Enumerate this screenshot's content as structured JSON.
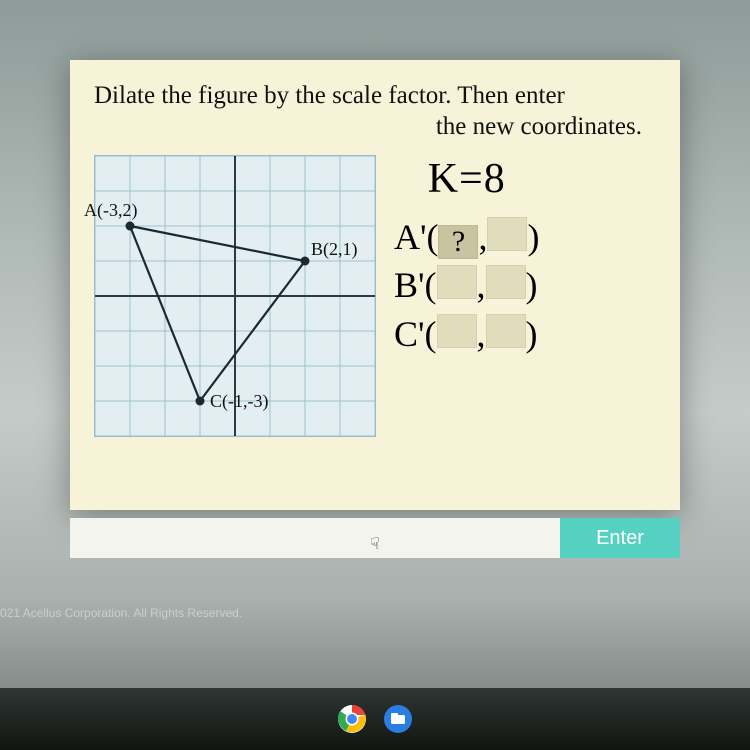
{
  "question": {
    "line1": "Dilate the figure by the scale factor. Then enter",
    "line2": "the new coordinates."
  },
  "graph": {
    "points": {
      "A": {
        "label": "A(-3,2)",
        "x": -3,
        "y": 2
      },
      "B": {
        "label": "B(2,1)",
        "x": 2,
        "y": 1
      },
      "C": {
        "label": "C(-1,-3)",
        "x": -1,
        "y": -3
      }
    },
    "x_range": [
      -4,
      4
    ],
    "y_range": [
      -4,
      4
    ],
    "cell_size": 35,
    "grid_color": "#9fc1d0",
    "bg_color": "#e3eef2",
    "axis_color": "#2d3a42",
    "stroke_color": "#1a2a33",
    "point_color": "#1a2a33",
    "label_fontsize": 18
  },
  "scale": {
    "label": "K=8"
  },
  "answers": {
    "A": {
      "label": "A'",
      "x": "?",
      "y": ""
    },
    "B": {
      "label": "B'",
      "x": "",
      "y": ""
    },
    "C": {
      "label": "C'",
      "x": "",
      "y": ""
    }
  },
  "enter": {
    "label": "Enter"
  },
  "copyright": "021 Acellus Corporation. All Rights Reserved.",
  "colors": {
    "card_bg": "#f6f3d8",
    "blank_bg": "#e0dcbc",
    "blank_active_bg": "#c8c3a0",
    "enter_btn_bg": "#56d1c1"
  },
  "taskbar": {
    "icons": [
      "chrome",
      "files"
    ]
  }
}
